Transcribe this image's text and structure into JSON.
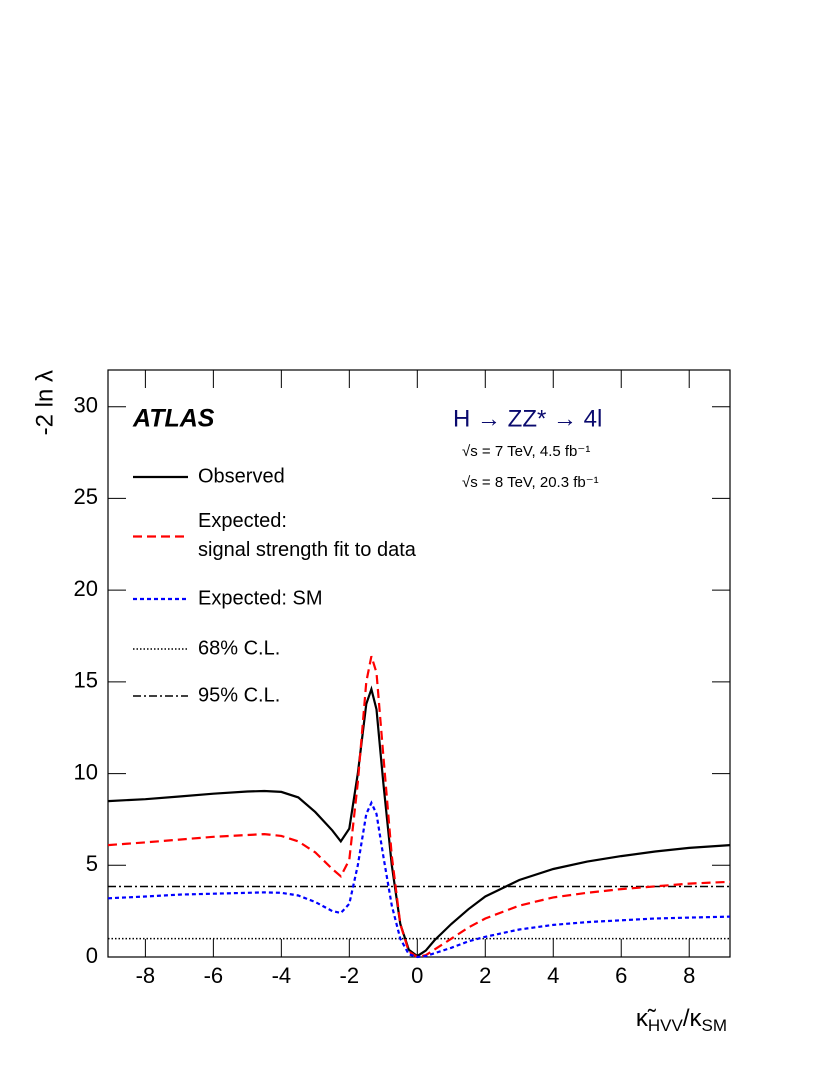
{
  "chart_data": {
    "type": "line",
    "y_label": "-2 ln λ",
    "x_label": {
      "symbol": "κ̃",
      "sub1": "HVV",
      "mid": "/κ",
      "sub2": "SM"
    },
    "annotations": {
      "experiment": "ATLAS",
      "process": "H → ZZ* → 4l",
      "lumi7": "√s = 7 TeV, 4.5 fb⁻¹",
      "lumi8": "√s = 8 TeV, 20.3 fb⁻¹"
    },
    "x": [
      -9.1,
      -8,
      -7,
      -6,
      -5,
      -4.5,
      -4,
      -3.5,
      -3,
      -2.5,
      -2.25,
      -2,
      -1.75,
      -1.5,
      -1.35,
      -1.2,
      -1,
      -0.75,
      -0.5,
      -0.25,
      0,
      0.25,
      0.5,
      1,
      1.5,
      2,
      3,
      4,
      5,
      6,
      7,
      8,
      9.2
    ],
    "series": [
      {
        "name": "Observed",
        "color": "#000000",
        "dash": "solid",
        "values": [
          8.5,
          8.6,
          8.75,
          8.9,
          9.02,
          9.05,
          9.0,
          8.7,
          7.9,
          6.9,
          6.3,
          7.0,
          10.0,
          13.8,
          14.6,
          13.5,
          9.5,
          5.0,
          1.8,
          0.4,
          0.05,
          0.35,
          0.9,
          1.8,
          2.6,
          3.3,
          4.2,
          4.8,
          5.2,
          5.5,
          5.75,
          5.95,
          6.1
        ]
      },
      {
        "name": "Expected:\nsignal strength fit to data",
        "color": "#ff0000",
        "dash": "dashed",
        "values": [
          6.1,
          6.25,
          6.4,
          6.55,
          6.65,
          6.7,
          6.6,
          6.3,
          5.7,
          4.8,
          4.4,
          5.3,
          9.5,
          15.0,
          16.4,
          15.5,
          11.0,
          5.5,
          1.8,
          0.3,
          0.0,
          0.1,
          0.4,
          1.0,
          1.6,
          2.1,
          2.8,
          3.25,
          3.5,
          3.7,
          3.85,
          4.0,
          4.1
        ]
      },
      {
        "name": "Expected: SM",
        "color": "#0000ff",
        "dash": "dotted",
        "values": [
          3.2,
          3.3,
          3.4,
          3.45,
          3.5,
          3.52,
          3.5,
          3.35,
          3.0,
          2.5,
          2.4,
          2.9,
          5.0,
          7.8,
          8.4,
          7.8,
          5.5,
          2.8,
          1.0,
          0.15,
          0.0,
          0.05,
          0.2,
          0.5,
          0.85,
          1.1,
          1.5,
          1.75,
          1.9,
          2.0,
          2.1,
          2.15,
          2.2
        ]
      }
    ],
    "reference_lines": [
      {
        "name": "68% C.L.",
        "value": 1,
        "color": "#000000",
        "dash": "fine-dotted"
      },
      {
        "name": "95% C.L.",
        "value": 3.84,
        "color": "#000000",
        "dash": "dash-dot"
      }
    ],
    "xlim": [
      -9.1,
      9.2
    ],
    "xticks": [
      -8,
      -6,
      -4,
      -2,
      0,
      2,
      4,
      6,
      8
    ],
    "ylim": [
      0,
      32
    ],
    "yticks": [
      0,
      5,
      10,
      15,
      20,
      25,
      30
    ],
    "legend": "top-left",
    "grid": false
  }
}
